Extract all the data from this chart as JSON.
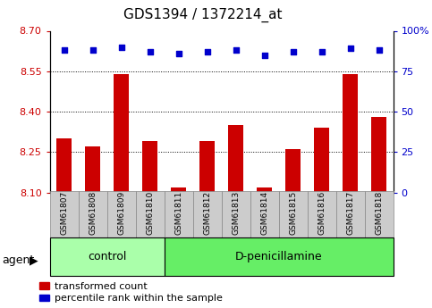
{
  "title": "GDS1394 / 1372214_at",
  "samples": [
    "GSM61807",
    "GSM61808",
    "GSM61809",
    "GSM61810",
    "GSM61811",
    "GSM61812",
    "GSM61813",
    "GSM61814",
    "GSM61815",
    "GSM61816",
    "GSM61817",
    "GSM61818"
  ],
  "bar_values": [
    8.3,
    8.27,
    8.54,
    8.29,
    8.12,
    8.29,
    8.35,
    8.12,
    8.26,
    8.34,
    8.54,
    8.38
  ],
  "percentile_values": [
    88,
    88,
    90,
    87,
    86,
    87,
    88,
    85,
    87,
    87,
    89,
    88
  ],
  "bar_color": "#cc0000",
  "percentile_color": "#0000cc",
  "ylim_left": [
    8.1,
    8.7
  ],
  "ylim_right": [
    0,
    100
  ],
  "yticks_left": [
    8.1,
    8.25,
    8.4,
    8.55,
    8.7
  ],
  "yticks_right": [
    0,
    25,
    50,
    75,
    100
  ],
  "grid_values": [
    8.25,
    8.4,
    8.55
  ],
  "n_control": 4,
  "n_treatment": 8,
  "control_label": "control",
  "treatment_label": "D-penicillamine",
  "agent_label": "agent",
  "legend_bar_label": "transformed count",
  "legend_pct_label": "percentile rank within the sample",
  "control_bg": "#aaffaa",
  "treatment_bg": "#66ee66",
  "xticklabel_bg": "#cccccc",
  "tick_label_color_left": "#cc0000",
  "tick_label_color_right": "#0000cc",
  "title_color": "#000000",
  "bar_bottom": 8.1,
  "marker_size": 5,
  "title_fontsize": 11,
  "tick_fontsize": 8,
  "label_fontsize": 8,
  "group_fontsize": 9,
  "sample_fontsize": 6.5
}
